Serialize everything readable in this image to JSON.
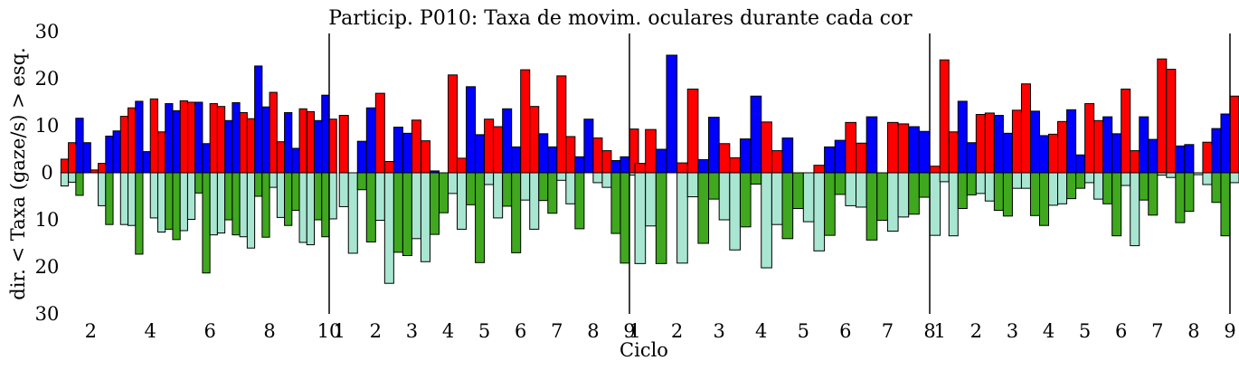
{
  "chart_data": {
    "type": "bar",
    "title": "Particip. P010: Taxa de movim. oculares durante cada cor",
    "xlabel": "Ciclo",
    "ylabel": "dir. < Taxa (gaze/s) > esq.",
    "ylim": [
      -30,
      30
    ],
    "y_ticks": [
      {
        "value": 30,
        "label": "30"
      },
      {
        "value": 20,
        "label": "20"
      },
      {
        "value": 10,
        "label": "10"
      },
      {
        "value": 0,
        "label": "0"
      },
      {
        "value": -10,
        "label": "10"
      },
      {
        "value": -20,
        "label": "20"
      },
      {
        "value": -30,
        "label": "30"
      }
    ],
    "grid": false,
    "legend": "none",
    "colors": {
      "left_red": "#ff0000",
      "left_blue": "#0000ff",
      "right_aqua": "#a8e6d2",
      "right_green": "#3fa81e"
    },
    "panels": [
      {
        "cycle_ticks": [
          "2",
          "4",
          "6",
          "8",
          "10"
        ],
        "tick_positions": [
          2,
          4,
          6,
          8,
          10
        ],
        "xlim": [
          1.08,
          10
        ],
        "cycles": [
          {
            "cycle": 1,
            "left": [
              2.9,
              6.4,
              11.6,
              6.4
            ],
            "right": [
              -2.8,
              -2.0,
              -4.8,
              0
            ]
          },
          {
            "cycle": 2,
            "left": [
              0.6,
              2.0,
              7.8,
              8.9
            ],
            "right": [
              0,
              -7.0,
              -11.0,
              0
            ]
          },
          {
            "cycle": 3,
            "left": [
              12.0,
              13.8,
              15.2,
              4.5
            ],
            "right": [
              -11.0,
              -11.2,
              -17.3,
              0
            ]
          },
          {
            "cycle": 4,
            "left": [
              15.7,
              8.7,
              14.7,
              13.2
            ],
            "right": [
              -9.6,
              -12.6,
              -12.0,
              -14.2
            ]
          },
          {
            "cycle": 5,
            "left": [
              15.3,
              15.0,
              15.0,
              6.2
            ],
            "right": [
              -12.3,
              -9.9,
              -4.3,
              -21.3
            ]
          },
          {
            "cycle": 6,
            "left": [
              14.7,
              14.1,
              11.1,
              14.9
            ],
            "right": [
              -13.2,
              -12.8,
              -10.0,
              -13.2
            ]
          },
          {
            "cycle": 7,
            "left": [
              12.8,
              11.5,
              22.7,
              14.0
            ],
            "right": [
              -13.6,
              -16.0,
              -5.0,
              -13.7
            ]
          },
          {
            "cycle": 8,
            "left": [
              17.1,
              6.6,
              12.8,
              5.2
            ],
            "right": [
              -3.1,
              -9.5,
              -11.2,
              -8.0
            ]
          },
          {
            "cycle": 9,
            "left": [
              13.6,
              13.0,
              11.1,
              16.5
            ],
            "right": [
              -14.8,
              -15.3,
              -10.0,
              -13.6
            ]
          },
          {
            "cycle": 10,
            "left": [
              11.4
            ],
            "right": [
              -9.8
            ]
          }
        ]
      },
      {
        "cycle_ticks": [
          "1",
          "2",
          "3",
          "4",
          "5",
          "6",
          "7",
          "8",
          "9"
        ],
        "tick_positions": [
          1,
          2,
          3,
          4,
          5,
          6,
          7,
          8,
          9
        ],
        "xlim": [
          0.72,
          9
        ],
        "cycles": [
          {
            "cycle": 1,
            "left": [
              12.2,
              0,
              6.7,
              13.8
            ],
            "right": [
              -7.2,
              -17.1,
              -3.6,
              -14.7
            ]
          },
          {
            "cycle": 2,
            "left": [
              16.9,
              2.4,
              9.7,
              8.4
            ],
            "right": [
              -10.1,
              -23.5,
              -16.9,
              -17.6
            ]
          },
          {
            "cycle": 3,
            "left": [
              11.2,
              6.8,
              0.4,
              0
            ],
            "right": [
              -14.0,
              -18.9,
              -13.1,
              -8.5
            ]
          },
          {
            "cycle": 4,
            "left": [
              20.8,
              3.1,
              18.3,
              8.1
            ],
            "right": [
              -4.4,
              -12.0,
              -6.8,
              -19.1
            ]
          },
          {
            "cycle": 5,
            "left": [
              11.4,
              9.8,
              13.6,
              5.5
            ],
            "right": [
              -2.5,
              -9.6,
              -7.1,
              -17.0
            ]
          },
          {
            "cycle": 6,
            "left": [
              21.9,
              14.1,
              8.3,
              5.5
            ],
            "right": [
              -5.8,
              -12.0,
              -5.9,
              -8.6
            ]
          },
          {
            "cycle": 7,
            "left": [
              20.6,
              7.7,
              3.4,
              11.4
            ],
            "right": [
              -1.6,
              -6.6,
              -11.9,
              0
            ]
          },
          {
            "cycle": 8,
            "left": [
              7.4,
              4.7,
              2.6,
              3.4
            ],
            "right": [
              -2.1,
              -3.1,
              -12.9,
              -19.2
            ]
          },
          {
            "cycle": 9,
            "left": [
              9.3
            ],
            "right": [
              -0.5
            ]
          }
        ]
      },
      {
        "cycle_ticks": [
          "1",
          "2",
          "3",
          "4",
          "5",
          "6",
          "7",
          "8"
        ],
        "tick_positions": [
          1,
          2,
          3,
          4,
          5,
          6,
          7,
          8
        ],
        "xlim": [
          0.87,
          8
        ],
        "cycles": [
          {
            "cycle": 1,
            "left": [
              2.0,
              9.2,
              5.0,
              25.0
            ],
            "right": [
              -19.3,
              -11.3,
              -19.3,
              0
            ]
          },
          {
            "cycle": 2,
            "left": [
              2.1,
              17.8,
              2.8,
              11.8
            ],
            "right": [
              -19.2,
              -5.1,
              -15.0,
              -5.6
            ]
          },
          {
            "cycle": 3,
            "left": [
              6.2,
              3.2,
              7.2,
              16.3
            ],
            "right": [
              -10.0,
              -16.4,
              -11.5,
              -2.4
            ]
          },
          {
            "cycle": 4,
            "left": [
              10.8,
              4.7,
              7.4,
              0
            ],
            "right": [
              -20.2,
              -11.0,
              -14.0,
              -7.6
            ]
          },
          {
            "cycle": 5,
            "left": [
              0,
              1.6,
              5.5,
              6.9
            ],
            "right": [
              -10.4,
              -16.6,
              -13.3,
              -4.6
            ]
          },
          {
            "cycle": 6,
            "left": [
              10.7,
              6.3,
              11.9,
              0
            ],
            "right": [
              -7.0,
              -7.3,
              -14.3,
              -10.1
            ]
          },
          {
            "cycle": 7,
            "left": [
              10.7,
              10.4,
              9.8,
              8.8
            ],
            "right": [
              -12.4,
              -9.4,
              -8.8,
              -5.2
            ]
          },
          {
            "cycle": 8,
            "left": [
              1.4
            ],
            "right": [
              -13.3
            ]
          }
        ]
      },
      {
        "cycle_ticks": [
          "1",
          "2",
          "3",
          "4",
          "5",
          "6",
          "7",
          "8",
          "9"
        ],
        "tick_positions": [
          1,
          2,
          3,
          4,
          5,
          6,
          7,
          8,
          9
        ],
        "xlim": [
          0.72,
          9
        ],
        "cycles": [
          {
            "cycle": 1,
            "left": [
              24.0,
              8.7,
              15.2,
              6.4
            ],
            "right": [
              -1.9,
              -13.4,
              -7.6,
              -4.7
            ]
          },
          {
            "cycle": 2,
            "left": [
              12.4,
              12.7,
              12.2,
              8.4
            ],
            "right": [
              -4.4,
              -6.0,
              -8.0,
              -9.2
            ]
          },
          {
            "cycle": 3,
            "left": [
              13.3,
              18.9,
              13.1,
              7.9
            ],
            "right": [
              -3.3,
              -3.3,
              -9.1,
              -11.2
            ]
          },
          {
            "cycle": 4,
            "left": [
              8.2,
              10.9,
              13.4,
              3.8
            ],
            "right": [
              -6.9,
              -6.6,
              -5.5,
              -3.3
            ]
          },
          {
            "cycle": 5,
            "left": [
              14.7,
              11.1,
              11.9,
              8.3
            ],
            "right": [
              -2.1,
              -5.6,
              -6.6,
              -13.4
            ]
          },
          {
            "cycle": 6,
            "left": [
              17.8,
              4.7,
              11.9,
              7.1
            ],
            "right": [
              -2.7,
              -15.5,
              -5.8,
              -9.0
            ]
          },
          {
            "cycle": 7,
            "left": [
              24.2,
              22.0,
              5.7,
              6.0
            ],
            "right": [
              -0.5,
              -1.0,
              -10.6,
              -8.2
            ]
          },
          {
            "cycle": 8,
            "left": [
              0,
              6.5,
              9.4,
              12.5
            ],
            "right": [
              -0.4,
              -2.5,
              -6.3,
              -13.4
            ]
          },
          {
            "cycle": 9,
            "left": [
              16.3
            ],
            "right": [
              -2.1
            ]
          }
        ]
      }
    ]
  }
}
